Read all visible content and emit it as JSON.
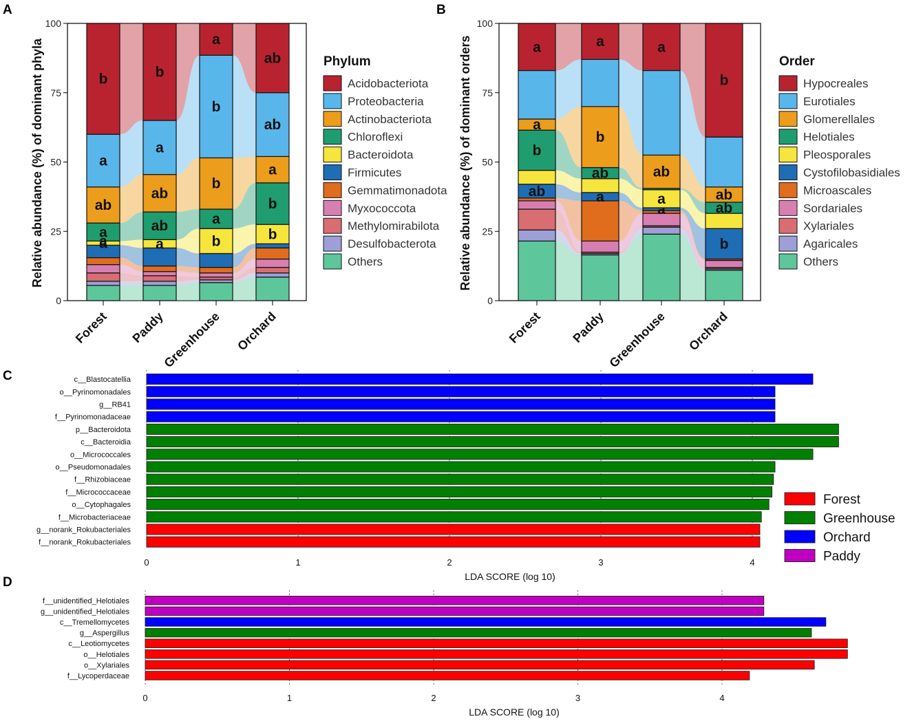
{
  "panel_labels": [
    "A",
    "B",
    "C",
    "D"
  ],
  "chart_data": [
    {
      "type": "bar",
      "subtype": "stacked-alluvial",
      "panel": "A",
      "title": "",
      "xlabel": "",
      "ylabel": "Relative abundance (%) of dominant phyla",
      "ylim": [
        0,
        100
      ],
      "yticks": [
        0,
        25,
        50,
        75,
        100
      ],
      "categories": [
        "Forest",
        "Paddy",
        "Greenhouse",
        "Orchard"
      ],
      "legend_title": "Phylum",
      "series": [
        {
          "name": "Others",
          "color": "#5ec69b",
          "values": [
            5.5,
            5.5,
            6.5,
            8.5
          ],
          "labels": [
            "",
            "",
            "",
            ""
          ]
        },
        {
          "name": "Desulfobacterota",
          "color": "#9d9fd6",
          "values": [
            1.5,
            1.5,
            1.0,
            1.5
          ],
          "labels": [
            "",
            "",
            "",
            ""
          ]
        },
        {
          "name": "Methylomirabilota",
          "color": "#d86e72",
          "values": [
            3.0,
            2.0,
            1.0,
            2.0
          ],
          "labels": [
            "",
            "",
            "",
            ""
          ]
        },
        {
          "name": "Myxococcota",
          "color": "#d87fb2",
          "values": [
            3.0,
            1.5,
            1.5,
            3.0
          ],
          "labels": [
            "",
            "",
            "",
            ""
          ]
        },
        {
          "name": "Gemmatimonadota",
          "color": "#e06c1e",
          "values": [
            2.5,
            2.0,
            2.0,
            4.0
          ],
          "labels": [
            "",
            "",
            "",
            ""
          ]
        },
        {
          "name": "Firmicutes",
          "color": "#1f6db5",
          "values": [
            4.5,
            6.5,
            5.0,
            1.5
          ],
          "labels": [
            "",
            "",
            "",
            ""
          ]
        },
        {
          "name": "Bacteroidota",
          "color": "#f6e53c",
          "values": [
            1.5,
            3.0,
            9.0,
            7.0
          ],
          "labels": [
            "a",
            "a",
            "b",
            "b"
          ]
        },
        {
          "name": "Chloroflexi",
          "color": "#1f9c70",
          "values": [
            6.5,
            10.0,
            7.0,
            15.0
          ],
          "labels": [
            "a",
            "ab",
            "a",
            "b"
          ]
        },
        {
          "name": "Actinobacteriota",
          "color": "#ec9d1c",
          "values": [
            13.0,
            13.5,
            18.5,
            9.5
          ],
          "labels": [
            "ab",
            "ab",
            "b",
            "a"
          ]
        },
        {
          "name": "Proteobacteria",
          "color": "#58b6ea",
          "values": [
            19.0,
            19.5,
            37.0,
            23.0
          ],
          "labels": [
            "a",
            "a",
            "b",
            "ab"
          ]
        },
        {
          "name": "Acidobacteriota",
          "color": "#b8232f",
          "values": [
            40.0,
            35.0,
            11.5,
            25.0
          ],
          "labels": [
            "b",
            "b",
            "a",
            "ab"
          ]
        }
      ],
      "extra_labels": [
        {
          "category": "Forest",
          "series": "Firmicutes",
          "label": "a"
        }
      ]
    },
    {
      "type": "bar",
      "subtype": "stacked-alluvial",
      "panel": "B",
      "title": "",
      "xlabel": "",
      "ylabel": "Relative abundance (%) of dominant orders",
      "ylim": [
        0,
        100
      ],
      "yticks": [
        0,
        25,
        50,
        75,
        100
      ],
      "categories": [
        "Forest",
        "Paddy",
        "Greenhouse",
        "Orchard"
      ],
      "legend_title": "Order",
      "series": [
        {
          "name": "Others",
          "color": "#5ec69b",
          "values": [
            21.5,
            16.5,
            24.0,
            11.0
          ],
          "labels": [
            "",
            "",
            "",
            ""
          ]
        },
        {
          "name": "Agaricales",
          "color": "#9d9fd6",
          "values": [
            4.0,
            0.5,
            2.5,
            0.5
          ],
          "labels": [
            "",
            "",
            "",
            ""
          ]
        },
        {
          "name": "Xylariales",
          "color": "#d86e72",
          "values": [
            7.5,
            0.5,
            0.5,
            0.5
          ],
          "labels": [
            "",
            "",
            "",
            ""
          ]
        },
        {
          "name": "Sordariales",
          "color": "#d87fb2",
          "values": [
            3.0,
            4.0,
            4.5,
            2.5
          ],
          "labels": [
            "",
            "",
            "",
            ""
          ]
        },
        {
          "name": "Microascales",
          "color": "#e06c1e",
          "values": [
            1.0,
            14.5,
            1.0,
            0.5
          ],
          "labels": [
            "",
            "",
            "",
            ""
          ]
        },
        {
          "name": "Cystofilobasidiales",
          "color": "#1f6db5",
          "values": [
            5.0,
            3.0,
            1.0,
            11.0
          ],
          "labels": [
            "ab",
            "a",
            "a",
            "b"
          ]
        },
        {
          "name": "Pleosporales",
          "color": "#f6e53c",
          "values": [
            5.0,
            5.0,
            6.5,
            5.5
          ],
          "labels": [
            "",
            "",
            "a",
            ""
          ]
        },
        {
          "name": "Helotiales",
          "color": "#1f9c70",
          "values": [
            14.5,
            4.0,
            0.5,
            4.0
          ],
          "labels": [
            "b",
            "ab",
            "",
            "ab"
          ]
        },
        {
          "name": "Glomerellales",
          "color": "#ec9d1c",
          "values": [
            4.0,
            22.0,
            12.0,
            5.5
          ],
          "labels": [
            "a",
            "b",
            "ab",
            "ab"
          ]
        },
        {
          "name": "Eurotiales",
          "color": "#58b6ea",
          "values": [
            17.5,
            17.0,
            30.5,
            18.0
          ],
          "labels": [
            "",
            "",
            "",
            ""
          ]
        },
        {
          "name": "Hypocreales",
          "color": "#b8232f",
          "values": [
            17.0,
            13.0,
            17.0,
            41.0
          ],
          "labels": [
            "a",
            "a",
            "a",
            "b"
          ]
        }
      ]
    },
    {
      "type": "bar",
      "subtype": "horizontal",
      "panel": "C",
      "title": "",
      "xlabel": "LDA SCORE (log 10)",
      "xlim": [
        0,
        4.5
      ],
      "xticks": [
        0,
        1,
        2,
        3,
        4
      ],
      "categories": [
        "c__Blastocatellia",
        "o__Pyrinomonadales",
        "g__RB41",
        "f__Pyrinomonadaceae",
        "p__Bacteroidota",
        "c__Bacteroidia",
        "o__Micrococcales",
        "o__Pseudomonadales",
        "f__Rhizobiaceae",
        "f__Micrococcaceae",
        "o__Cytophagales",
        "f__Microbacteriaceae",
        "g__norank_Rokubacteriales",
        "f__norank_Rokubacteriales"
      ],
      "values": [
        4.4,
        4.15,
        4.15,
        4.15,
        4.57,
        4.57,
        4.4,
        4.15,
        4.14,
        4.13,
        4.11,
        4.06,
        4.05,
        4.05
      ],
      "groups": [
        "Orchard",
        "Orchard",
        "Orchard",
        "Orchard",
        "Greenhouse",
        "Greenhouse",
        "Greenhouse",
        "Greenhouse",
        "Greenhouse",
        "Greenhouse",
        "Greenhouse",
        "Greenhouse",
        "Forest",
        "Forest"
      ],
      "legend": [
        {
          "name": "Forest",
          "color": "#ff0000"
        },
        {
          "name": "Greenhouse",
          "color": "#008000"
        },
        {
          "name": "Orchard",
          "color": "#0000ff"
        },
        {
          "name": "Paddy",
          "color": "#c000c0"
        }
      ]
    },
    {
      "type": "bar",
      "subtype": "horizontal",
      "panel": "D",
      "title": "",
      "xlabel": "LDA SCORE (log 10)",
      "xlim": [
        0,
        4.65
      ],
      "xticks": [
        0,
        1,
        2,
        3,
        4
      ],
      "categories": [
        "f__unidentified_Helotiales",
        "g__unidentified_Helotiales",
        "c__Tremellomycetes",
        "g__Aspergillus",
        "c__Leotiomycetes",
        "o__Helotiales",
        "o__Xylariales",
        "f__Lycoperdaceae"
      ],
      "values": [
        4.29,
        4.29,
        4.72,
        4.62,
        4.87,
        4.87,
        4.64,
        4.19
      ],
      "groups": [
        "Paddy",
        "Paddy",
        "Orchard",
        "Greenhouse",
        "Forest",
        "Forest",
        "Forest",
        "Forest"
      ]
    }
  ]
}
